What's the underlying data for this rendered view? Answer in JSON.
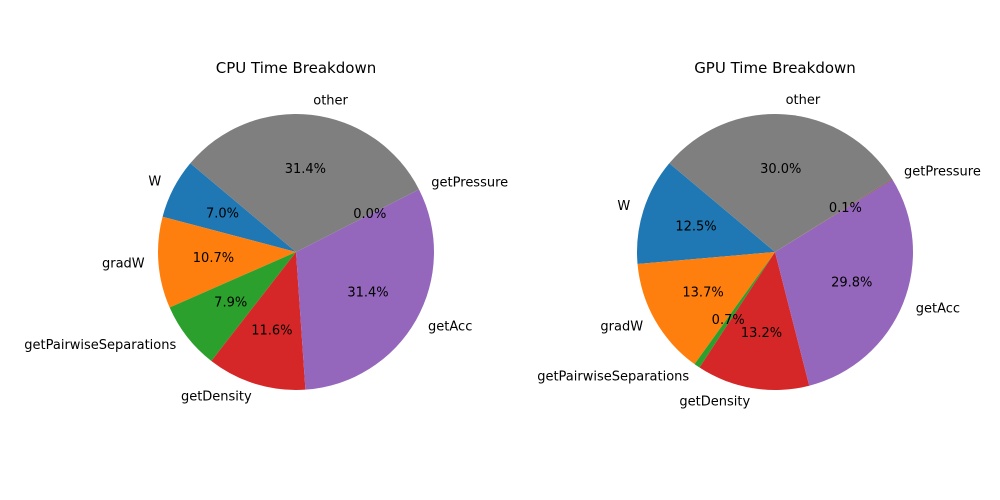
{
  "chart_data": [
    {
      "type": "pie",
      "title": "CPU Time Breakdown",
      "categories": [
        "W",
        "gradW",
        "getPairwiseSeparations",
        "getDensity",
        "getAcc",
        "getPressure",
        "other"
      ],
      "values": [
        7.0,
        10.7,
        7.9,
        11.6,
        31.4,
        0.0,
        31.4
      ],
      "percent_labels": [
        "7.0%",
        "10.7%",
        "7.9%",
        "11.6%",
        "31.4%",
        "0.0%",
        "31.4%"
      ],
      "colors": [
        "#1f77b4",
        "#ff7f0e",
        "#2ca02c",
        "#d62728",
        "#9467bd",
        "#8c564b",
        "#7f7f7f"
      ]
    },
    {
      "type": "pie",
      "title": "GPU Time Breakdown",
      "categories": [
        "W",
        "gradW",
        "getPairwiseSeparations",
        "getDensity",
        "getAcc",
        "getPressure",
        "other"
      ],
      "values": [
        12.5,
        13.7,
        0.7,
        13.2,
        29.8,
        0.1,
        30.0
      ],
      "percent_labels": [
        "12.5%",
        "13.7%",
        "0.7%",
        "13.2%",
        "29.8%",
        "0.1%",
        "30.0%"
      ],
      "colors": [
        "#1f77b4",
        "#ff7f0e",
        "#2ca02c",
        "#d62728",
        "#9467bd",
        "#8c564b",
        "#7f7f7f"
      ]
    }
  ]
}
